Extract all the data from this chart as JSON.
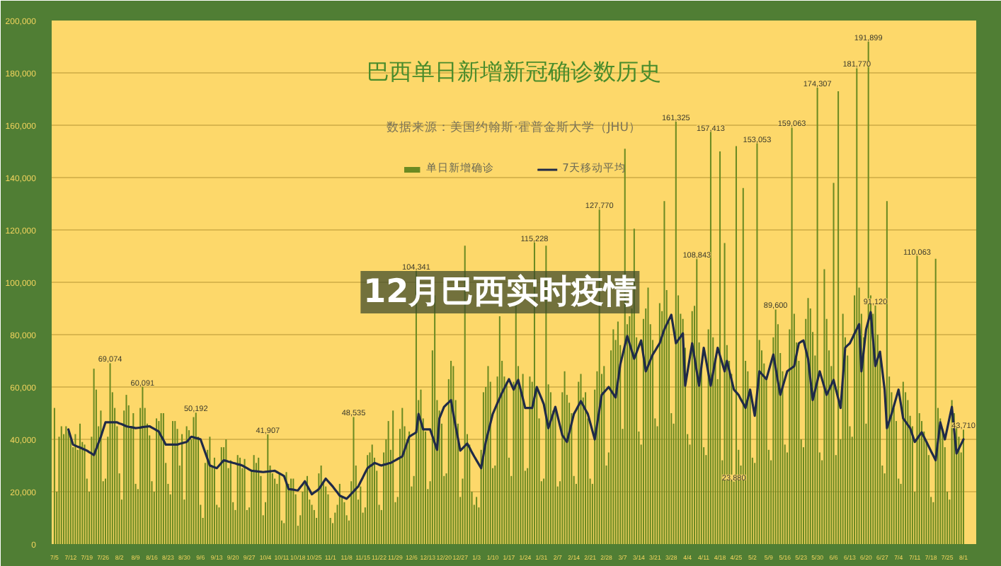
{
  "chart_data": {
    "type": "bar",
    "title": "巴西单日新增新冠确诊数历史",
    "subtitle": "数据来源：美国约翰斯·霍普金斯大学（JHU）",
    "annotations": [
      "12月巴西实时疫情"
    ],
    "categories": [
      "7/5",
      null,
      null,
      null,
      null,
      null,
      null,
      "7/12",
      null,
      null,
      null,
      null,
      null,
      null,
      "7/19",
      null,
      null,
      null,
      null,
      null,
      null,
      "7/26",
      null,
      null,
      null,
      null,
      null,
      null,
      "8/2",
      null,
      null,
      null,
      null,
      null,
      null,
      "8/9",
      null,
      null,
      null,
      null,
      null,
      null,
      "8/16",
      null,
      null,
      null,
      null,
      null,
      null,
      "8/23",
      null,
      null,
      null,
      null,
      null,
      null,
      "8/30",
      null,
      null,
      null,
      null,
      null,
      null,
      "9/6",
      null,
      null,
      null,
      null,
      null,
      null,
      "9/13",
      null,
      null,
      null,
      null,
      null,
      null,
      "9/20",
      null,
      null,
      null,
      null,
      null,
      null,
      "9/27",
      null,
      null,
      null,
      null,
      null,
      null,
      "10/4",
      null,
      null,
      null,
      null,
      null,
      null,
      "10/11",
      null,
      null,
      null,
      null,
      null,
      null,
      "10/18",
      null,
      null,
      null,
      null,
      null,
      null,
      "10/25",
      null,
      null,
      null,
      null,
      null,
      null,
      "11/1",
      null,
      null,
      null,
      null,
      null,
      null,
      "11/8",
      null,
      null,
      null,
      null,
      null,
      null,
      "11/15",
      null,
      null,
      null,
      null,
      null,
      null,
      "11/22",
      null,
      null,
      null,
      null,
      null,
      null,
      "11/29",
      null,
      null,
      null,
      null,
      null,
      null,
      "12/6",
      null,
      null,
      null,
      null,
      null,
      null,
      "12/13",
      null,
      null,
      null,
      null,
      null,
      null,
      "12/20",
      null,
      null,
      null,
      null,
      null,
      null,
      "12/27",
      null,
      null,
      null,
      null,
      null,
      null,
      "1/3",
      null,
      null,
      null,
      null,
      null,
      null,
      "1/10",
      null,
      null,
      null,
      null,
      null,
      null,
      "1/17",
      null,
      null,
      null,
      null,
      null,
      null,
      "1/24",
      null,
      null,
      null,
      null,
      null,
      null,
      "1/31",
      null,
      null,
      null,
      null,
      null,
      null,
      "2/7",
      null,
      null,
      null,
      null,
      null,
      null,
      "2/14",
      null,
      null,
      null,
      null,
      null,
      null,
      "2/21",
      null,
      null,
      null,
      null,
      null,
      null,
      "2/28",
      null,
      null,
      null,
      null,
      null,
      null,
      "3/7",
      null,
      null,
      null,
      null,
      null,
      null,
      "3/14",
      null,
      null,
      null,
      null,
      null,
      null,
      "3/21",
      null,
      null,
      null,
      null,
      null,
      null,
      "3/28",
      null,
      null,
      null,
      null,
      null,
      null,
      "4/4",
      null,
      null,
      null,
      null,
      null,
      null,
      "4/11",
      null,
      null,
      null,
      null,
      null,
      null,
      "4/18",
      null,
      null,
      null,
      null,
      null,
      null,
      "4/25",
      null,
      null,
      null,
      null,
      null,
      null,
      "5/2",
      null,
      null,
      null,
      null,
      null,
      null,
      "5/9",
      null,
      null,
      null,
      null,
      null,
      null,
      "5/16",
      null,
      null,
      null,
      null,
      null,
      null,
      "5/23",
      null,
      null,
      null,
      null,
      null,
      null,
      "5/30",
      null,
      null,
      null,
      null,
      null,
      null,
      "6/6",
      null,
      null,
      null,
      null,
      null,
      null,
      "6/13",
      null,
      null,
      null,
      null,
      null,
      null,
      "6/20",
      null,
      null,
      null,
      null,
      null,
      null,
      "6/27",
      null,
      null,
      null,
      null,
      null,
      null,
      "7/4",
      null,
      null,
      null,
      null,
      null,
      null,
      "7/11",
      null,
      null,
      null,
      null,
      null,
      null,
      "7/18",
      null,
      null,
      null,
      null,
      null,
      null,
      "7/25",
      null,
      null,
      null,
      null,
      null,
      null,
      "8/1"
    ],
    "ylim": [
      0,
      200000
    ],
    "yticks": [
      {
        "value": 0,
        "label": "0"
      },
      {
        "value": 20000,
        "label": "20,000"
      },
      {
        "value": 40000,
        "label": "40,000"
      },
      {
        "value": 60000,
        "label": "60,000"
      },
      {
        "value": 80000,
        "label": "80,000"
      },
      {
        "value": 100000,
        "label": "100,000"
      },
      {
        "value": 120000,
        "label": "120,000"
      },
      {
        "value": 140000,
        "label": "140,000"
      },
      {
        "value": 160000,
        "label": "160,000"
      },
      {
        "value": 180000,
        "label": "180,000"
      },
      {
        "value": 200000,
        "label": "200,000"
      }
    ],
    "grid": "y",
    "legend": "top",
    "series": [
      {
        "name": "单日新增确诊",
        "color": "#6b8a22",
        "values": [
          52000,
          20000,
          41000,
          45000,
          42000,
          45000,
          43000,
          40000,
          37000,
          42000,
          36000,
          46000,
          39000,
          38000,
          25000,
          20000,
          41000,
          67000,
          59000,
          45000,
          51000,
          24000,
          25000,
          41000,
          69074,
          58000,
          52000,
          45000,
          27000,
          17000,
          51000,
          57000,
          53000,
          45000,
          50000,
          23000,
          21000,
          52000,
          60091,
          52000,
          46000,
          41500,
          24000,
          20000,
          48000,
          47000,
          50000,
          50000,
          31000,
          23000,
          19000,
          47000,
          47000,
          44000,
          30000,
          42000,
          17000,
          45000,
          43500,
          40000,
          48500,
          50192,
          41000,
          15000,
          10000,
          31000,
          36000,
          41000,
          30000,
          33000,
          15000,
          14000,
          37000,
          37000,
          40000,
          29000,
          32000,
          16000,
          13000,
          34000,
          33000,
          29000,
          32500,
          13000,
          14000,
          28000,
          34000,
          31000,
          33000,
          26000,
          11000,
          16000,
          41907,
          30000,
          27000,
          25000,
          23000,
          27000,
          9000,
          8000,
          27500,
          23000,
          25000,
          25000,
          19000,
          7000,
          11000,
          20000,
          23000,
          26000,
          17000,
          15000,
          13000,
          10000,
          27000,
          30000,
          24000,
          22000,
          19000,
          10000,
          8000,
          12000,
          15000,
          23000,
          18000,
          16000,
          11000,
          9000,
          24000,
          48535,
          30000,
          17000,
          22000,
          12000,
          14000,
          34000,
          35000,
          38000,
          33000,
          28000,
          15000,
          13000,
          35000,
          40000,
          47000,
          36000,
          51000,
          16000,
          18000,
          44000,
          52000,
          45000,
          40000,
          43000,
          22000,
          26000,
          104341,
          55000,
          59000,
          48000,
          43000,
          21000,
          24000,
          74000,
          95000,
          55000,
          51000,
          46000,
          26000,
          27000,
          63000,
          70000,
          68000,
          55000,
          46000,
          18000,
          25000,
          114000,
          42000,
          38000,
          20000,
          15000,
          18000,
          14000,
          36000,
          58000,
          60000,
          68000,
          62000,
          29000,
          30000,
          64000,
          87000,
          70000,
          64000,
          62000,
          33000,
          26000,
          62000,
          92000,
          68000,
          59000,
          65000,
          28000,
          29000,
          64000,
          62000,
          115228,
          60000,
          48000,
          24000,
          25000,
          114000,
          61000,
          58000,
          51000,
          52000,
          22000,
          24000,
          58000,
          66000,
          57000,
          54000,
          50000,
          26000,
          23000,
          62000,
          65000,
          56000,
          58000,
          48000,
          25000,
          23000,
          59000,
          66000,
          127770,
          65000,
          68000,
          30000,
          35000,
          74000,
          82000,
          78000,
          85000,
          76000,
          44000,
          151000,
          84000,
          87000,
          90000,
          120500,
          79000,
          43000,
          38000,
          86000,
          90000,
          98000,
          84000,
          78000,
          48000,
          45000,
          92000,
          89000,
          131000,
          97000,
          85000,
          50000,
          46000,
          161325,
          95000,
          88000,
          86000,
          75000,
          42000,
          38000,
          89000,
          91000,
          108843,
          77000,
          69000,
          37000,
          34000,
          82000,
          157413,
          79000,
          71000,
          63000,
          150000,
          32000,
          115000,
          76000,
          70000,
          65000,
          23880,
          152000,
          36000,
          30000,
          136000,
          70000,
          66000,
          58000,
          33000,
          31000,
          153053,
          78000,
          74000,
          69000,
          64000,
          36000,
          32000,
          79000,
          89600,
          84000,
          73000,
          66000,
          38000,
          35000,
          82000,
          159063,
          88000,
          77000,
          70000,
          40000,
          37000,
          86000,
          94000,
          90000,
          81000,
          72000,
          174307,
          35000,
          32000,
          105000,
          86000,
          74000,
          68000,
          138000,
          34000,
          173000,
          40000,
          88000,
          79000,
          72000,
          45000,
          41000,
          95000,
          181770,
          98000,
          88000,
          79000,
          46000,
          191899,
          95000,
          88000,
          91120,
          80000,
          72000,
          30000,
          27000,
          131000,
          64000,
          58000,
          52000,
          47000,
          25000,
          23000,
          62000,
          58000,
          55000,
          49000,
          45000,
          20000,
          110063,
          50000,
          47000,
          43000,
          39000,
          34000,
          18000,
          16000,
          109000,
          52000,
          48000,
          44000,
          37000,
          20000,
          17000,
          55000,
          50000,
          46000,
          41000,
          35000,
          43710
        ],
        "value_labels": [
          null,
          null,
          null,
          null,
          null,
          null,
          null,
          null,
          null,
          null,
          null,
          null,
          null,
          null,
          null,
          null,
          null,
          null,
          null,
          null,
          null,
          null,
          null,
          null,
          "69,074",
          null,
          null,
          null,
          null,
          null,
          null,
          null,
          null,
          null,
          null,
          null,
          null,
          null,
          "60,091",
          null,
          null,
          null,
          null,
          null,
          null,
          null,
          null,
          null,
          null,
          null,
          null,
          null,
          null,
          null,
          null,
          null,
          null,
          null,
          null,
          null,
          null,
          "50,192",
          null,
          null,
          null,
          null,
          null,
          null,
          null,
          null,
          null,
          null,
          null,
          null,
          null,
          null,
          null,
          null,
          null,
          null,
          null,
          null,
          null,
          null,
          null,
          null,
          null,
          null,
          null,
          null,
          null,
          null,
          "41,907",
          null,
          null,
          null,
          null,
          null,
          null,
          null,
          null,
          null,
          null,
          null,
          null,
          null,
          null,
          null,
          null,
          null,
          null,
          null,
          null,
          null,
          null,
          null,
          null,
          null,
          null,
          null,
          null,
          null,
          null,
          null,
          null,
          null,
          null,
          null,
          null,
          "48,535",
          null,
          null,
          null,
          null,
          null,
          null,
          null,
          null,
          null,
          null,
          null,
          null,
          null,
          null,
          null,
          null,
          null,
          null,
          null,
          null,
          null,
          null,
          null,
          null,
          null,
          null,
          "104,341",
          null,
          null,
          null,
          null,
          null,
          null,
          null,
          null,
          null,
          null,
          null,
          null,
          null,
          null,
          null,
          null,
          null,
          null,
          null,
          null,
          null,
          null,
          null,
          null,
          null,
          null,
          null,
          null,
          null,
          null,
          null,
          null,
          null,
          null,
          null,
          null,
          null,
          null,
          null,
          null,
          null,
          null,
          null,
          null,
          null,
          null,
          null,
          null,
          null,
          null,
          "115,228",
          null,
          null,
          null,
          null,
          null,
          null,
          null,
          null,
          null,
          null,
          null,
          null,
          null,
          null,
          null,
          null,
          null,
          null,
          null,
          null,
          null,
          null,
          null,
          null,
          null,
          null,
          null,
          "127,770",
          null,
          null,
          null,
          null,
          null,
          null,
          null,
          null,
          null,
          null,
          null,
          null,
          null,
          null,
          null,
          null,
          null,
          null,
          null,
          null,
          null,
          null,
          null,
          null,
          null,
          null,
          null,
          null,
          null,
          null,
          null,
          null,
          "161,325",
          null,
          null,
          null,
          null,
          null,
          null,
          null,
          null,
          "108,843",
          null,
          null,
          null,
          null,
          null,
          "157,413",
          null,
          null,
          null,
          null,
          null,
          null,
          null,
          null,
          null,
          "23,880",
          null,
          null,
          null,
          null,
          null,
          null,
          null,
          null,
          null,
          "153,053",
          null,
          null,
          null,
          null,
          null,
          null,
          null,
          "89,600",
          null,
          null,
          null,
          null,
          null,
          null,
          "159,063",
          null,
          null,
          null,
          null,
          null,
          null,
          null,
          null,
          null,
          null,
          "174,307",
          null,
          null,
          null,
          null,
          null,
          null,
          null,
          null,
          null,
          null,
          null,
          null,
          null,
          null,
          null,
          null,
          "181,770",
          null,
          null,
          null,
          null,
          "191,899",
          null,
          null,
          "91,120",
          null,
          null,
          null,
          null,
          null,
          null,
          null,
          null,
          null,
          null,
          null,
          null,
          null,
          null,
          null,
          null,
          null,
          "110,063",
          null,
          null,
          null,
          null,
          null,
          null,
          null,
          null,
          null,
          null,
          null,
          null,
          null,
          null,
          null,
          null,
          null,
          null,
          null,
          "43,710"
        ]
      },
      {
        "name": "7天移动平均",
        "type": "line",
        "color": "#1f2a48",
        "values": [
          null,
          null,
          null,
          null,
          null,
          null,
          43800,
          40900,
          38000,
          37600,
          37200,
          36900,
          36500,
          36100,
          35700,
          35100,
          34600,
          34000,
          36300,
          38700,
          41000,
          43800,
          46500,
          46500,
          46500,
          46500,
          46500,
          46500,
          46100,
          45800,
          45400,
          45000,
          44800,
          44700,
          44500,
          44300,
          44400,
          44500,
          44700,
          44800,
          44900,
          45000,
          44500,
          44000,
          43500,
          43000,
          41300,
          39700,
          38000,
          38000,
          38000,
          38000,
          38000,
          38000,
          38300,
          38500,
          38800,
          39000,
          40000,
          41000,
          40800,
          40500,
          40300,
          40000,
          37500,
          35000,
          32500,
          30000,
          29700,
          29300,
          29000,
          30000,
          31000,
          32000,
          31800,
          31500,
          31300,
          31000,
          30800,
          30500,
          30300,
          30000,
          29500,
          29000,
          28500,
          28000,
          27900,
          27800,
          27700,
          27600,
          27500,
          27600,
          27700,
          27800,
          27900,
          28000,
          27500,
          27000,
          26500,
          26000,
          23500,
          21000,
          20900,
          20800,
          20600,
          20500,
          21700,
          22800,
          24000,
          22300,
          20700,
          19000,
          19700,
          20300,
          21000,
          22300,
          23700,
          25000,
          24000,
          23000,
          22000,
          20800,
          19700,
          18500,
          18100,
          17700,
          17300,
          18200,
          19200,
          20100,
          21100,
          22000,
          23800,
          25500,
          27300,
          29000,
          29700,
          30300,
          31000,
          30700,
          30300,
          30000,
          30300,
          30500,
          30800,
          31000,
          31500,
          32000,
          32500,
          33000,
          33500,
          36000,
          38500,
          41000,
          41600,
          42100,
          42700,
          49700,
          46800,
          43800,
          43800,
          43800,
          43800,
          41200,
          38600,
          36000,
          48000,
          50200,
          52400,
          53300,
          54100,
          55000,
          49700,
          45000,
          40400,
          35700,
          36600,
          37500,
          38400,
          36800,
          35100,
          33500,
          32000,
          30500,
          29000,
          34000,
          39000,
          42600,
          46100,
          49700,
          51700,
          53800,
          55800,
          57800,
          59500,
          61300,
          63000,
          61000,
          59000,
          60900,
          62700,
          59100,
          55600,
          52000,
          52000,
          52000,
          52000,
          56000,
          60000,
          57800,
          55700,
          53500,
          48900,
          44300,
          47000,
          49700,
          52400,
          48800,
          45200,
          41600,
          40300,
          39000,
          42600,
          46100,
          49700,
          51300,
          53000,
          54600,
          53000,
          51300,
          49700,
          46500,
          43200,
          40000,
          45700,
          51300,
          57000,
          58000,
          59000,
          60000,
          58700,
          57300,
          56000,
          62300,
          68600,
          72200,
          75900,
          79500,
          76600,
          73700,
          70800,
          73100,
          75500,
          77800,
          71900,
          66000,
          68100,
          70300,
          72400,
          73800,
          75300,
          76700,
          79400,
          82000,
          83900,
          85700,
          87600,
          82200,
          76700,
          78000,
          79200,
          80500,
          60500,
          65900,
          71300,
          76700,
          71300,
          65900,
          60500,
          67800,
          75000,
          70200,
          65300,
          60500,
          65300,
          70200,
          75000,
          72000,
          69000,
          66000,
          70000,
          66300,
          62700,
          59000,
          58000,
          57000,
          55300,
          53700,
          52000,
          55500,
          59000,
          54000,
          49000,
          57500,
          66000,
          65000,
          64000,
          63000,
          66100,
          69300,
          72400,
          67300,
          62100,
          57000,
          60000,
          63000,
          66000,
          66700,
          67300,
          68000,
          72400,
          76700,
          77300,
          77800,
          74300,
          70800,
          62900,
          55000,
          58700,
          62300,
          66000,
          63000,
          60000,
          57000,
          58900,
          60800,
          62700,
          59100,
          55600,
          52000,
          63500,
          75000,
          75900,
          76700,
          78500,
          80400,
          82200,
          84000,
          66000,
          74000,
          82000,
          85300,
          88600,
          78300,
          68000,
          70800,
          73500,
          66300,
          59000,
          44300,
          47000,
          49700,
          52800,
          55900,
          59000,
          53500,
          48000,
          46800,
          45500,
          44300,
          41700,
          39000,
          40200,
          41500,
          42700,
          40900,
          39100,
          37300,
          35500,
          33800,
          32000,
          39300,
          46500,
          43300,
          40000,
          44100,
          48300,
          52400,
          43500,
          34600,
          36400,
          38200,
          40000
        ]
      }
    ]
  }
}
